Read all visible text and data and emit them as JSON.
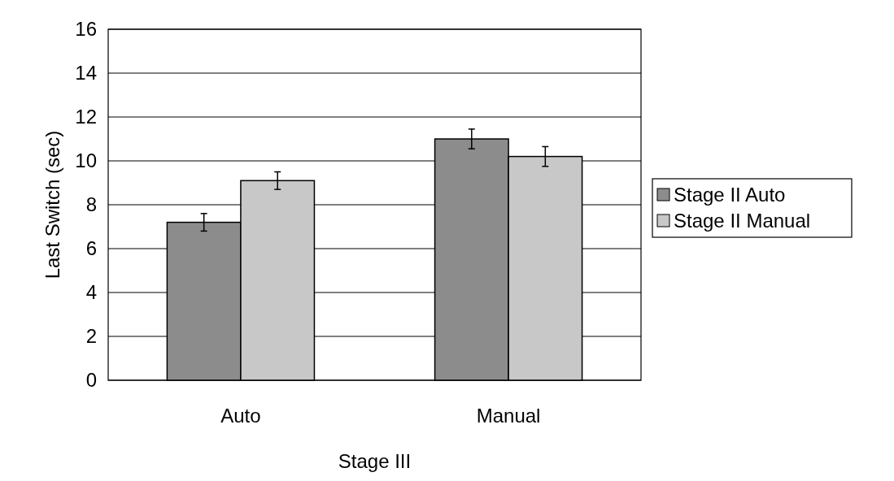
{
  "chart_data": {
    "type": "bar",
    "xlabel": "Stage III",
    "ylabel": "Last Switch (sec)",
    "categories": [
      "Auto",
      "Manual"
    ],
    "series": [
      {
        "name": "Stage II Auto",
        "color": "#8c8c8c",
        "values": [
          7.2,
          11.0
        ],
        "errors": [
          0.4,
          0.45
        ]
      },
      {
        "name": "Stage II Manual",
        "color": "#c8c8c8",
        "values": [
          9.1,
          10.2
        ],
        "errors": [
          0.4,
          0.45
        ]
      }
    ],
    "ylim": [
      0,
      16
    ],
    "yticks": [
      0,
      2,
      4,
      6,
      8,
      10,
      12,
      14,
      16
    ],
    "grid": "y",
    "legend": "right"
  }
}
